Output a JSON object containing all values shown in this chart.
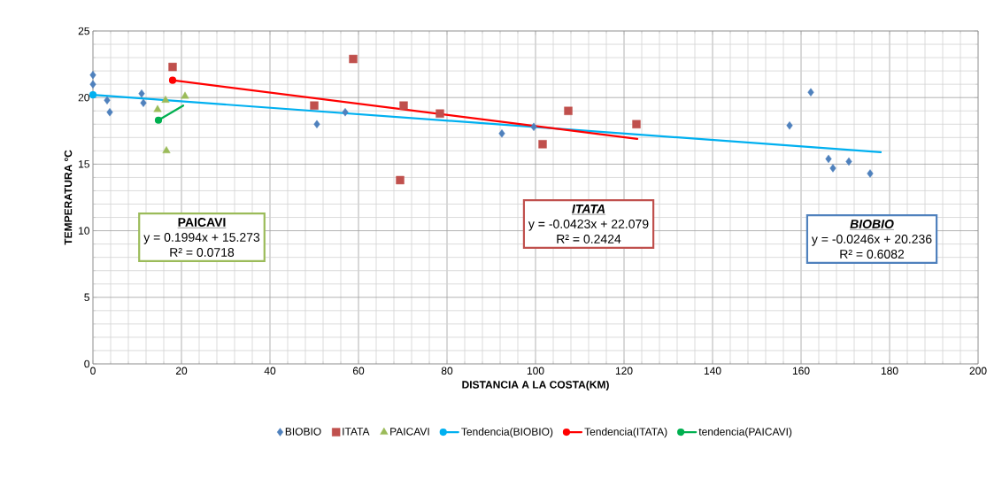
{
  "chart_data": {
    "type": "scatter",
    "xlabel": "DISTANCIA A LA COSTA(KM)",
    "ylabel": "TEMPERATURA ºC",
    "xlim": [
      0,
      200
    ],
    "xticks": [
      0,
      20,
      40,
      60,
      80,
      100,
      120,
      140,
      160,
      180,
      200
    ],
    "ylim": [
      0,
      25
    ],
    "yticks": [
      0,
      5,
      10,
      15,
      20,
      25
    ],
    "grid": true,
    "legend": "bottom",
    "series": [
      {
        "name": "BIOBIO",
        "marker": "diamond",
        "color": "#4f81bd",
        "x": [
          0,
          0,
          3.2,
          3.8,
          11,
          11.4,
          50.6,
          57,
          92.4,
          99.6,
          157.4,
          162.2,
          166.2,
          167.2,
          170.8,
          175.6
        ],
        "values": [
          21.7,
          21.0,
          19.8,
          18.9,
          20.3,
          19.6,
          18.0,
          18.9,
          17.3,
          17.8,
          17.9,
          20.4,
          15.4,
          14.7,
          15.2,
          14.3
        ]
      },
      {
        "name": "ITATA",
        "marker": "square",
        "color": "#c0504d",
        "x": [
          18,
          50,
          58.8,
          69.4,
          70.2,
          78.4,
          101.6,
          107.4,
          122.8
        ],
        "values": [
          22.3,
          19.4,
          22.9,
          13.8,
          19.4,
          18.8,
          16.5,
          19.0,
          18.0
        ]
      },
      {
        "name": "PAICAVI",
        "marker": "triangle",
        "color": "#9bbb59",
        "x": [
          14.6,
          16.4,
          16.6,
          20.8
        ],
        "values": [
          19.1,
          19.8,
          16.0,
          20.1
        ]
      },
      {
        "name": "Tendencia(BIOBIO)",
        "type": "line",
        "marker": "circle",
        "color": "#00b0f0",
        "x": [
          0,
          178
        ],
        "values": [
          20.2,
          15.9
        ]
      },
      {
        "name": "Tendencia(ITATA)",
        "type": "line",
        "marker": "circle",
        "color": "#ff0000",
        "x": [
          18,
          123
        ],
        "values": [
          21.3,
          16.9
        ]
      },
      {
        "name": "tendencia(PAICAVI)",
        "type": "line",
        "marker": "circle",
        "color": "#00b050",
        "x": [
          14.8,
          20.4
        ],
        "values": [
          18.3,
          19.4
        ]
      }
    ],
    "annotations": [
      "PAICAVI",
      "y = 0.1994x + 15.273",
      "R² = 0.0718",
      "ITATA",
      "y = -0.0423x + 22.079",
      "R² = 0.2424",
      "BIOBIO",
      "y = -0.0246x + 20.236",
      "R² = 0.6082"
    ]
  }
}
